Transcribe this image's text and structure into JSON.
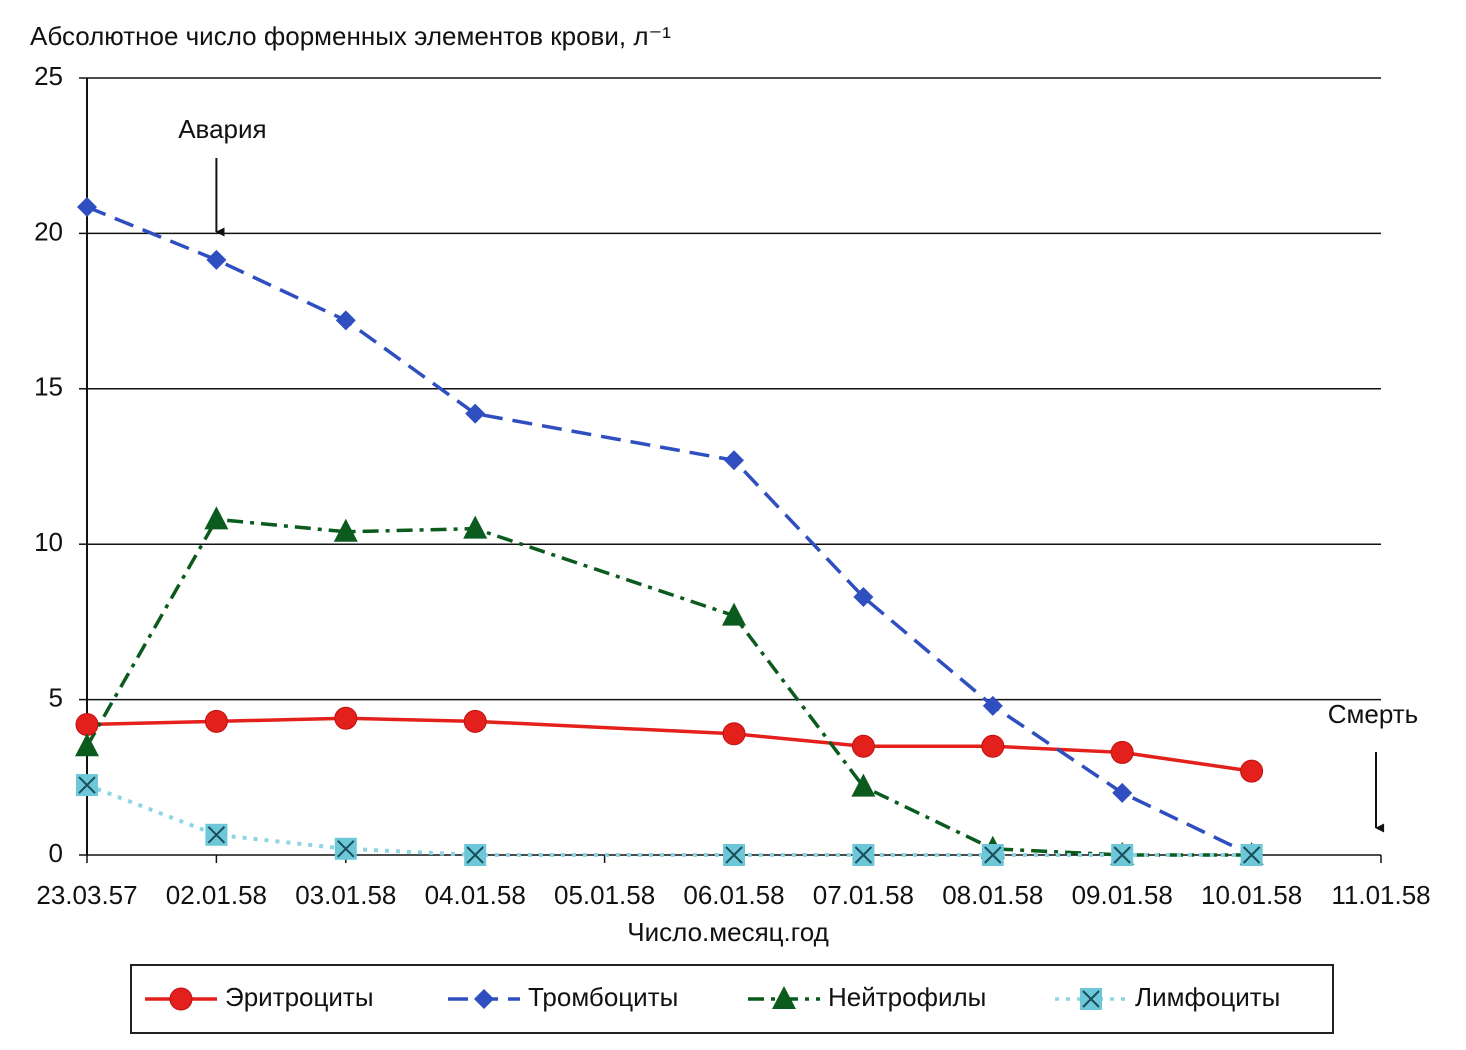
{
  "chart_data": {
    "type": "line",
    "y_label": "Абсолютное число форменных элементов крови, л⁻¹",
    "x_label": "Число.месяц.год",
    "categories": [
      "23.03.57",
      "02.01.58",
      "03.01.58",
      "04.01.58",
      "05.01.58",
      "06.01.58",
      "07.01.58",
      "08.01.58",
      "09.01.58",
      "10.01.58",
      "11.01.58"
    ],
    "series": [
      {
        "name": "Эритроциты",
        "color": "#e3201b",
        "marker": "circle",
        "dash": "solid",
        "values": [
          4.2,
          4.3,
          4.4,
          4.3,
          null,
          3.9,
          3.5,
          3.5,
          3.3,
          2.7,
          null
        ]
      },
      {
        "name": "Тромбоциты",
        "color": "#2f4fc0",
        "marker": "diamond",
        "dash": "dashed",
        "values": [
          20.85,
          19.15,
          17.2,
          14.2,
          null,
          12.7,
          8.3,
          4.8,
          2.0,
          0,
          null
        ]
      },
      {
        "name": "Нейтрофилы",
        "color": "#0b5a1e",
        "marker": "triangle",
        "dash": "dashdot",
        "values": [
          3.5,
          10.8,
          10.4,
          10.5,
          null,
          7.7,
          2.2,
          0.2,
          0,
          0,
          null
        ]
      },
      {
        "name": "Лимфоциты",
        "color": "#8fd4e2",
        "marker": "xsquare",
        "dash": "dotted",
        "values": [
          2.25,
          0.65,
          0.2,
          0,
          null,
          0,
          0,
          0,
          0,
          0,
          null
        ]
      }
    ],
    "span_gaps": true,
    "ylim": [
      0,
      25
    ],
    "yticks": [
      0,
      5,
      10,
      15,
      20,
      25
    ],
    "grid": true,
    "legend": "bottom",
    "annotations": [
      {
        "text": "Авария",
        "category": "02.01.58"
      },
      {
        "text": "Смерть",
        "category": "11.01.58"
      }
    ]
  }
}
